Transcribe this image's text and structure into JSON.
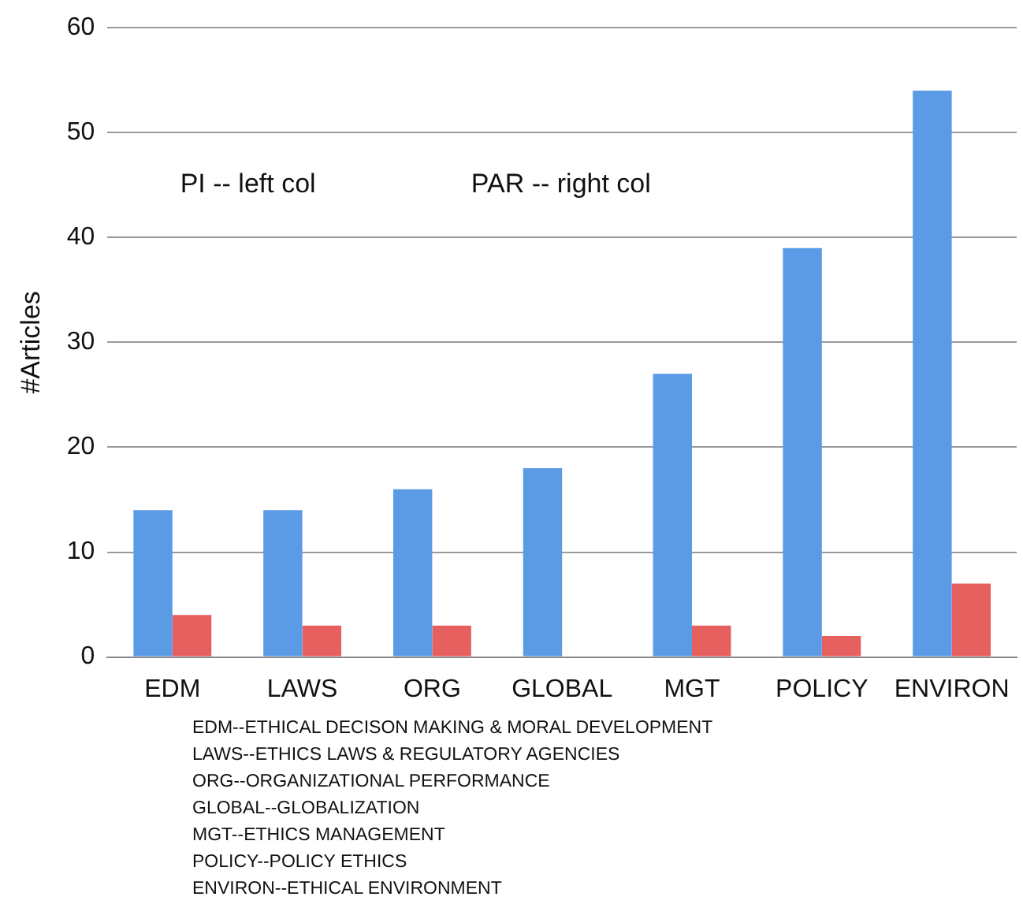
{
  "chart_data": {
    "type": "bar",
    "ylabel": "#Articles",
    "categories": [
      "EDM",
      "LAWS",
      "ORG",
      "GLOBAL",
      "MGT",
      "POLICY",
      "ENVIRON"
    ],
    "series": [
      {
        "color": "#5b9be6",
        "values": [
          14,
          14,
          16,
          18,
          27,
          39,
          54
        ]
      },
      {
        "color": "#e5605e",
        "values": [
          4,
          3,
          3,
          0,
          3,
          2,
          7
        ]
      }
    ],
    "ylim": [
      0,
      60
    ],
    "yticks": [
      0,
      10,
      20,
      30,
      40,
      50,
      60
    ],
    "grid": "y",
    "legend": false,
    "annotations": [
      "PI -- left col",
      "PAR -- right col",
      "EDM--ETHICAL DECISON MAKING & MORAL DEVELOPMENT",
      "LAWS--ETHICS LAWS & REGULATORY AGENCIES",
      "ORG--ORGANIZATIONAL PERFORMANCE",
      "GLOBAL--GLOBALIZATION",
      "MGT--ETHICS MANAGEMENT",
      "POLICY--POLICY ETHICS",
      "ENVIRON--ETHICAL ENVIRONMENT"
    ]
  }
}
